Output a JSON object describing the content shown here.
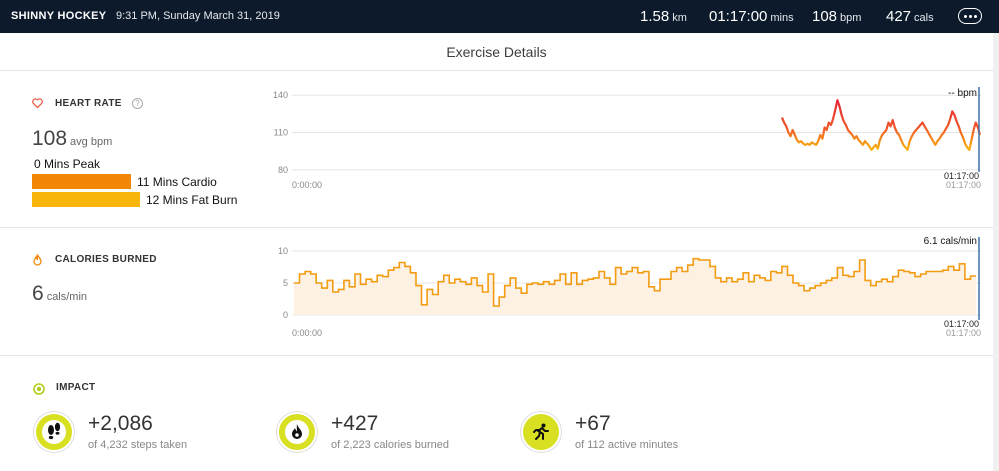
{
  "header": {
    "title": "SHINNY HOCKEY",
    "datetime": "9:31 PM, Sunday March 31, 2019",
    "distance": {
      "value": "1.58",
      "unit": "km"
    },
    "duration": {
      "value": "01:17:00",
      "unit": "mins"
    },
    "heart_rate": {
      "value": "108",
      "unit": "bpm"
    },
    "calories": {
      "value": "427",
      "unit": "cals"
    }
  },
  "page_title": "Exercise Details",
  "heart_rate": {
    "label": "HEART RATE",
    "help": "?",
    "avg_value": "108",
    "avg_unit": "avg bpm",
    "zones": [
      {
        "label": "0 Mins Peak",
        "minutes": 0,
        "color": "#e8402f"
      },
      {
        "label": "11 Mins Cardio",
        "minutes": 11,
        "color": "#f28705"
      },
      {
        "label": "12 Mins Fat Burn",
        "minutes": 12,
        "color": "#f8b50c"
      }
    ],
    "readout": "-- bpm",
    "x_start": "0:00:00",
    "x_end": "01:17:00",
    "x_end_top": "01:17:00"
  },
  "calories": {
    "label": "CALORIES BURNED",
    "value": "6",
    "unit": "cals/min",
    "readout": "6.1 cals/min",
    "x_start": "0:00:00",
    "x_end": "01:17:00",
    "x_end_top": "01:17:00"
  },
  "impact": {
    "label": "IMPACT",
    "items": [
      {
        "value": "+2,086",
        "sub": "of 4,232 steps taken",
        "icon": "footsteps-icon"
      },
      {
        "value": "+427",
        "sub": "of 2,223 calories burned",
        "icon": "flame-icon"
      },
      {
        "value": "+67",
        "sub": "of 112 active minutes",
        "icon": "runner-icon"
      }
    ]
  },
  "colors": {
    "topbar": "#0c1a2b",
    "hr_high": "#e8402f",
    "hr_low": "#f8b50c",
    "calorie_line": "#f39c12",
    "impact_accent": "#d9e021"
  },
  "chart_data": [
    {
      "type": "line",
      "title": "HEART RATE",
      "ylabel": "",
      "xlabel": "",
      "yticks": [
        80,
        110,
        140
      ],
      "ylim": [
        75,
        145
      ],
      "x_range": [
        "0:00:00",
        "01:17:00"
      ],
      "grid": true,
      "series": [
        {
          "values": [
            122,
            118,
            115,
            110,
            107,
            112,
            108,
            104,
            102,
            103,
            101,
            100,
            101,
            100,
            102,
            101,
            100,
            103,
            108,
            105,
            114,
            112,
            118,
            116,
            121,
            128,
            136,
            131,
            124,
            119,
            116,
            112,
            110,
            108,
            105,
            107,
            104,
            102,
            100,
            103,
            101,
            99,
            96,
            98,
            100,
            97,
            104,
            108,
            110,
            112,
            118,
            115,
            120,
            114,
            110,
            108,
            104,
            100,
            98,
            96,
            103,
            107,
            110,
            112,
            114,
            116,
            118,
            115,
            112,
            109,
            106,
            103,
            100,
            103,
            105,
            108,
            110,
            113,
            116,
            121,
            127,
            124,
            119,
            115,
            110,
            106,
            101,
            98,
            96,
            104,
            112,
            118,
            114,
            108
          ]
        }
      ]
    },
    {
      "type": "line",
      "title": "CALORIES BURNED",
      "ylabel": "",
      "xlabel": "",
      "yticks": [
        0,
        5,
        10
      ],
      "ylim": [
        0,
        10
      ],
      "x_range": [
        "0:00:00",
        "01:17:00"
      ],
      "grid": true,
      "series": [
        {
          "values": [
            5.0,
            6.4,
            6.8,
            6.4,
            5.0,
            4.2,
            5.4,
            3.6,
            4.0,
            5.4,
            4.4,
            6.4,
            4.8,
            5.6,
            5.2,
            6.2,
            6.0,
            7.0,
            7.4,
            8.2,
            7.6,
            6.6,
            4.6,
            1.6,
            4.0,
            3.2,
            5.2,
            6.2,
            5.0,
            5.6,
            5.2,
            4.8,
            5.8,
            4.6,
            3.6,
            6.4,
            1.4,
            2.8,
            4.6,
            5.8,
            4.2,
            3.4,
            4.8,
            5.0,
            4.8,
            5.2,
            4.8,
            5.4,
            6.4,
            4.8,
            6.6,
            4.8,
            5.4,
            5.6,
            5.8,
            6.8,
            5.8,
            4.8,
            7.4,
            6.4,
            6.8,
            7.4,
            6.6,
            6.8,
            4.4,
            3.8,
            5.6,
            5.6,
            6.8,
            7.4,
            6.8,
            7.8,
            8.8,
            8.6,
            8.6,
            7.6,
            5.8,
            5.2,
            5.8,
            5.2,
            5.6,
            6.6,
            5.2,
            6.2,
            5.8,
            5.4,
            6.8,
            6.6,
            7.6,
            6.2,
            5.0,
            4.6,
            3.8,
            4.2,
            4.6,
            5.0,
            5.4,
            5.8,
            7.4,
            6.2,
            6.0,
            6.8,
            8.6,
            5.4,
            4.6,
            5.2,
            5.6,
            5.2,
            6.0,
            7.0,
            6.8,
            6.6,
            6.0,
            6.4,
            6.8,
            6.8,
            6.8,
            7.0,
            7.6,
            7.0,
            8.0,
            5.6,
            6.1
          ]
        }
      ]
    }
  ]
}
